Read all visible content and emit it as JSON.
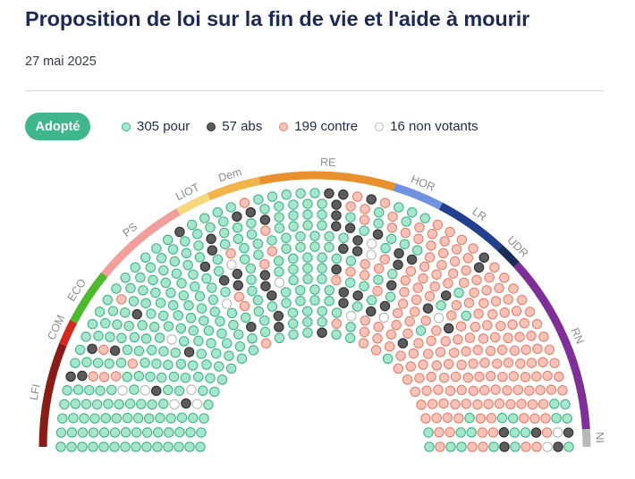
{
  "title": "Proposition de loi sur la fin de vie et l'aide à mourir",
  "date": "27 mai 2025",
  "status": "Adopté",
  "legend": {
    "pour": {
      "count": 305,
      "label": "pour",
      "text": "305 pour",
      "fill": "#a8e6cc",
      "stroke": "#3fb68b"
    },
    "abs": {
      "count": 57,
      "label": "abs",
      "text": "57 abs",
      "fill": "#5c5c5c",
      "stroke": "#2f2f2f"
    },
    "contre": {
      "count": 199,
      "label": "contre",
      "text": "199 contre",
      "fill": "#f7c3b8",
      "stroke": "#e8806e"
    },
    "nv": {
      "count": 16,
      "label": "non votants",
      "text": "16 non votants",
      "fill": "#ffffff",
      "stroke": "#b9b9b9"
    }
  },
  "chart_data": {
    "type": "hemicycle",
    "total_seats": 577,
    "groups": [
      {
        "label": "LFI",
        "color": "#8a1c17",
        "seats": 71
      },
      {
        "label": "COM",
        "color": "#d42a1e",
        "seats": 17
      },
      {
        "label": "ECO",
        "color": "#4cba2a",
        "seats": 38
      },
      {
        "label": "PS",
        "color": "#f29e9c",
        "seats": 66
      },
      {
        "label": "LIOT",
        "color": "#f7d77e",
        "seats": 23
      },
      {
        "label": "Dem",
        "color": "#f0b44a",
        "seats": 36
      },
      {
        "label": "RE",
        "color": "#e8902e",
        "seats": 92
      },
      {
        "label": "HOR",
        "color": "#6f93e0",
        "seats": 34
      },
      {
        "label": "LR",
        "color": "#23408e",
        "seats": 49
      },
      {
        "label": "UDR",
        "color": "#1b2d55",
        "seats": 16
      },
      {
        "label": "RN",
        "color": "#7e2f98",
        "seats": 123
      },
      {
        "label": "NI",
        "color": "#b8b8b8",
        "seats": 12
      }
    ],
    "votes": {
      "pour": 305,
      "abs": 57,
      "contre": 199,
      "non_votants": 16
    }
  }
}
